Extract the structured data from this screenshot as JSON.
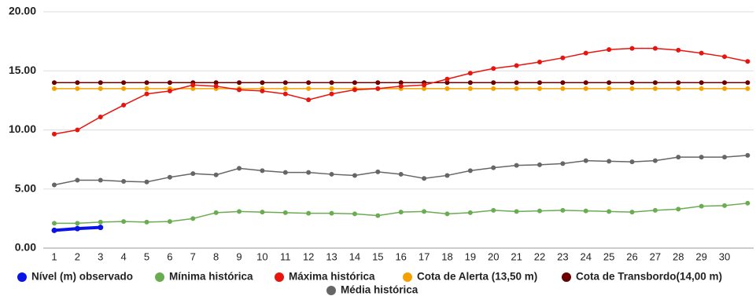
{
  "chart_data": {
    "type": "line",
    "categories": [
      "1",
      "2",
      "3",
      "4",
      "5",
      "6",
      "7",
      "8",
      "9",
      "10",
      "11",
      "12",
      "13",
      "14",
      "15",
      "16",
      "17",
      "18",
      "19",
      "20",
      "21",
      "22",
      "23",
      "24",
      "25",
      "26",
      "27",
      "28",
      "29",
      "30",
      null
    ],
    "ylim": [
      0,
      20
    ],
    "yticks": [
      {
        "value": 0,
        "label": "0.00"
      },
      {
        "value": 5,
        "label": "5.00"
      },
      {
        "value": 10,
        "label": "10.00"
      },
      {
        "value": 15,
        "label": "15.00"
      },
      {
        "value": 20,
        "label": "20.00"
      }
    ],
    "grid": true,
    "legend": "bottom",
    "series": [
      {
        "name": "Nível (m) observado",
        "color": "#0a14e6",
        "values": [
          1.5,
          1.65,
          1.75,
          null,
          null,
          null,
          null,
          null,
          null,
          null,
          null,
          null,
          null,
          null,
          null,
          null,
          null,
          null,
          null,
          null,
          null,
          null,
          null,
          null,
          null,
          null,
          null,
          null,
          null,
          null,
          null
        ]
      },
      {
        "name": "Mínima histórica",
        "color": "#6aac52",
        "values": [
          2.1,
          2.1,
          2.2,
          2.25,
          2.2,
          2.25,
          2.5,
          3.0,
          3.1,
          3.05,
          3.0,
          2.95,
          2.95,
          2.9,
          2.75,
          3.05,
          3.1,
          2.9,
          3.0,
          3.2,
          3.1,
          3.15,
          3.2,
          3.15,
          3.1,
          3.05,
          3.2,
          3.3,
          3.55,
          3.6,
          3.8
        ]
      },
      {
        "name": "Máxima histórica",
        "color": "#e8140e",
        "values": [
          9.65,
          10.0,
          11.1,
          12.1,
          13.05,
          13.3,
          13.8,
          13.7,
          13.4,
          13.3,
          13.05,
          12.55,
          13.05,
          13.4,
          13.5,
          13.7,
          13.8,
          14.3,
          14.8,
          15.2,
          15.45,
          15.75,
          16.1,
          16.5,
          16.8,
          16.9,
          16.9,
          16.75,
          16.5,
          16.2,
          15.8
        ]
      },
      {
        "name": "Cota de Alerta (13,50 m)",
        "color": "#f5a000",
        "values": [
          13.5,
          13.5,
          13.5,
          13.5,
          13.5,
          13.5,
          13.5,
          13.5,
          13.5,
          13.5,
          13.5,
          13.5,
          13.5,
          13.5,
          13.5,
          13.5,
          13.5,
          13.5,
          13.5,
          13.5,
          13.5,
          13.5,
          13.5,
          13.5,
          13.5,
          13.5,
          13.5,
          13.5,
          13.5,
          13.5,
          13.5
        ]
      },
      {
        "name": "Cota de Transbordo(14,00 m)",
        "color": "#6b0000",
        "values": [
          14,
          14,
          14,
          14,
          14,
          14,
          14,
          14,
          14,
          14,
          14,
          14,
          14,
          14,
          14,
          14,
          14,
          14,
          14,
          14,
          14,
          14,
          14,
          14,
          14,
          14,
          14,
          14,
          14,
          14,
          14
        ]
      },
      {
        "name": "Média histórica",
        "color": "#666666",
        "values": [
          5.35,
          5.75,
          5.75,
          5.65,
          5.6,
          6.0,
          6.3,
          6.2,
          6.75,
          6.55,
          6.4,
          6.4,
          6.25,
          6.15,
          6.45,
          6.25,
          5.9,
          6.15,
          6.55,
          6.8,
          7.0,
          7.05,
          7.15,
          7.4,
          7.35,
          7.3,
          7.4,
          7.7,
          7.7,
          7.7,
          7.85
        ]
      }
    ]
  }
}
